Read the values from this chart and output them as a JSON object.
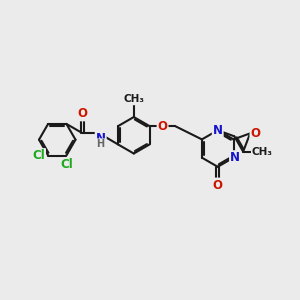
{
  "bg_color": "#ebebeb",
  "bond_color": "#1a1a1a",
  "bond_width": 1.5,
  "atom_colors": {
    "C": "#1a1a1a",
    "N": "#1414cc",
    "O": "#cc1400",
    "Cl": "#1aaa1a",
    "H": "#666666"
  },
  "font_size": 8.5,
  "fig_size": [
    3.0,
    3.0
  ],
  "dpi": 100
}
